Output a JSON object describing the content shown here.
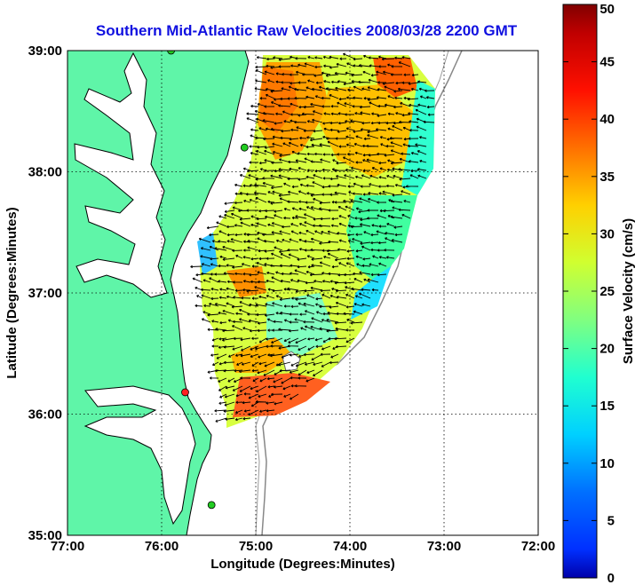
{
  "chart_data": {
    "type": "heatmap",
    "title": "Southern Mid-Atlantic Raw Velocities 2008/03/28 2200 GMT",
    "xlabel": "Longitude (Degrees:Minutes)",
    "ylabel": "Latitude (Degrees:Minutes)",
    "xlim": [
      -77,
      -72
    ],
    "ylim": [
      35,
      39
    ],
    "xticks": [
      {
        "value": -77,
        "label": "77:00"
      },
      {
        "value": -76,
        "label": "76:00"
      },
      {
        "value": -75,
        "label": "75:00"
      },
      {
        "value": -74,
        "label": "74:00"
      },
      {
        "value": -73,
        "label": "73:00"
      },
      {
        "value": -72,
        "label": "72:00"
      }
    ],
    "yticks": [
      {
        "value": 35,
        "label": "35:00"
      },
      {
        "value": 36,
        "label": "36:00"
      },
      {
        "value": 37,
        "label": "37:00"
      },
      {
        "value": 38,
        "label": "38:00"
      },
      {
        "value": 39,
        "label": "39:00"
      }
    ],
    "grid": true,
    "colorbar": {
      "label": "Surface Velocity (cm/s)",
      "range": [
        0,
        50
      ],
      "ticks": [
        {
          "value": 0,
          "label": "0"
        },
        {
          "value": 5,
          "label": "5"
        },
        {
          "value": 10,
          "label": "10"
        },
        {
          "value": 15,
          "label": "15"
        },
        {
          "value": 20,
          "label": "20"
        },
        {
          "value": 25,
          "label": "25"
        },
        {
          "value": 30,
          "label": "30"
        },
        {
          "value": 35,
          "label": "35"
        },
        {
          "value": 40,
          "label": "40"
        },
        {
          "value": 45,
          "label": "45"
        },
        {
          "value": 50,
          "label": "50"
        }
      ],
      "colormap": "jet"
    },
    "stations": [
      {
        "lon": -75.9,
        "lat": 39.0,
        "color": "#22cc22"
      },
      {
        "lon": -75.12,
        "lat": 38.2,
        "color": "#22cc22"
      },
      {
        "lon": -75.75,
        "lat": 36.18,
        "color": "#ff2020"
      },
      {
        "lon": -75.47,
        "lat": 35.25,
        "color": "#22cc22"
      }
    ],
    "land_color": "#5ff5a8",
    "coastline_color": "#000000",
    "bathymetry_color": "#888888"
  }
}
